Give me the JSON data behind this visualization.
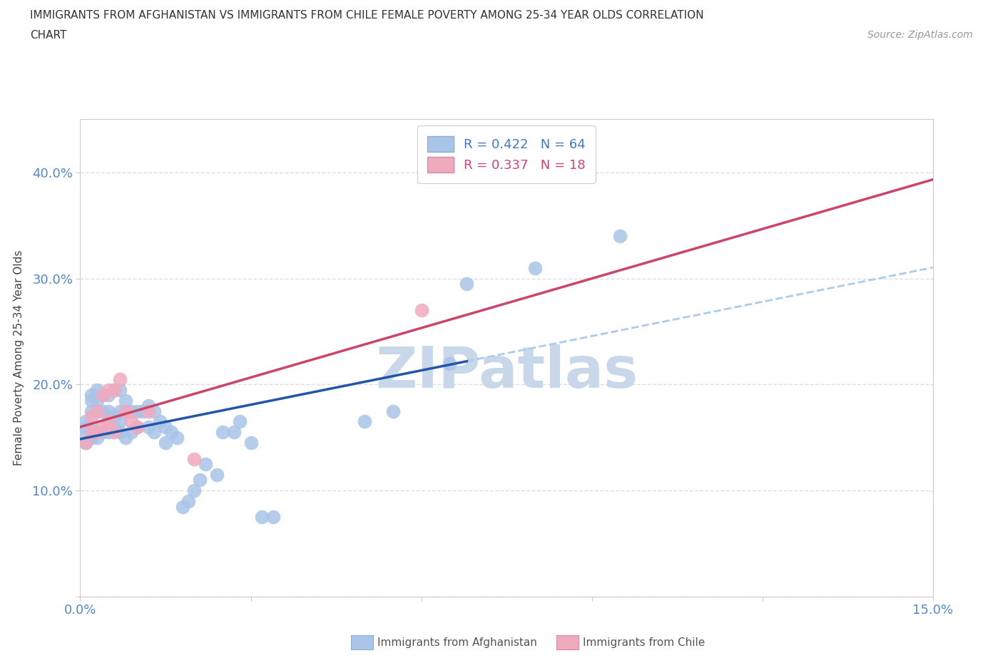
{
  "title_line1": "IMMIGRANTS FROM AFGHANISTAN VS IMMIGRANTS FROM CHILE FEMALE POVERTY AMONG 25-34 YEAR OLDS CORRELATION",
  "title_line2": "CHART",
  "source_text": "Source: ZipAtlas.com",
  "ylabel": "Female Poverty Among 25-34 Year Olds",
  "xlim": [
    0.0,
    0.15
  ],
  "ylim": [
    0.0,
    0.45
  ],
  "xtick_positions": [
    0.0,
    0.03,
    0.06,
    0.09,
    0.12,
    0.15
  ],
  "xticklabels": [
    "0.0%",
    "",
    "",
    "",
    "",
    "15.0%"
  ],
  "ytick_positions": [
    0.0,
    0.1,
    0.2,
    0.3,
    0.4
  ],
  "yticklabels": [
    "",
    "10.0%",
    "20.0%",
    "30.0%",
    "40.0%"
  ],
  "afghanistan_color": "#aac4e8",
  "chile_color": "#f0aabe",
  "trendline_afghanistan_color": "#2255aa",
  "trendline_chile_color": "#cc4466",
  "trendline_dashed_color": "#aaccee",
  "watermark_text": "ZIPatlas",
  "watermark_color": "#c8d8ea",
  "background_color": "#ffffff",
  "grid_color": "#dddddd",
  "legend_labels": [
    "R = 0.422   N = 64",
    "R = 0.337   N = 18"
  ],
  "legend_colors": [
    "#4477cc",
    "#cc4477"
  ],
  "bottom_legend_labels": [
    "Immigrants from Afghanistan",
    "Immigrants from Chile"
  ],
  "afghanistan_x": [
    0.001,
    0.001,
    0.001,
    0.001,
    0.002,
    0.002,
    0.002,
    0.002,
    0.002,
    0.002,
    0.003,
    0.003,
    0.003,
    0.003,
    0.003,
    0.004,
    0.004,
    0.004,
    0.005,
    0.005,
    0.005,
    0.005,
    0.006,
    0.006,
    0.006,
    0.007,
    0.007,
    0.007,
    0.007,
    0.008,
    0.008,
    0.008,
    0.009,
    0.009,
    0.01,
    0.01,
    0.011,
    0.012,
    0.012,
    0.013,
    0.013,
    0.014,
    0.015,
    0.015,
    0.016,
    0.017,
    0.018,
    0.019,
    0.02,
    0.021,
    0.022,
    0.024,
    0.025,
    0.027,
    0.028,
    0.03,
    0.032,
    0.034,
    0.05,
    0.055,
    0.065,
    0.068,
    0.08,
    0.095
  ],
  "afghanistan_y": [
    0.145,
    0.155,
    0.16,
    0.165,
    0.15,
    0.155,
    0.16,
    0.175,
    0.185,
    0.19,
    0.15,
    0.155,
    0.175,
    0.185,
    0.195,
    0.155,
    0.175,
    0.19,
    0.155,
    0.165,
    0.175,
    0.19,
    0.16,
    0.17,
    0.195,
    0.155,
    0.165,
    0.175,
    0.195,
    0.15,
    0.175,
    0.185,
    0.155,
    0.175,
    0.16,
    0.175,
    0.175,
    0.16,
    0.18,
    0.155,
    0.175,
    0.165,
    0.145,
    0.16,
    0.155,
    0.15,
    0.085,
    0.09,
    0.1,
    0.11,
    0.125,
    0.115,
    0.155,
    0.155,
    0.165,
    0.145,
    0.075,
    0.075,
    0.165,
    0.175,
    0.22,
    0.295,
    0.31,
    0.34
  ],
  "chile_x": [
    0.001,
    0.002,
    0.002,
    0.003,
    0.003,
    0.004,
    0.004,
    0.005,
    0.005,
    0.006,
    0.006,
    0.007,
    0.008,
    0.009,
    0.01,
    0.012,
    0.02,
    0.06
  ],
  "chile_y": [
    0.145,
    0.155,
    0.17,
    0.155,
    0.175,
    0.16,
    0.19,
    0.165,
    0.195,
    0.155,
    0.195,
    0.205,
    0.175,
    0.165,
    0.16,
    0.175,
    0.13,
    0.27
  ]
}
